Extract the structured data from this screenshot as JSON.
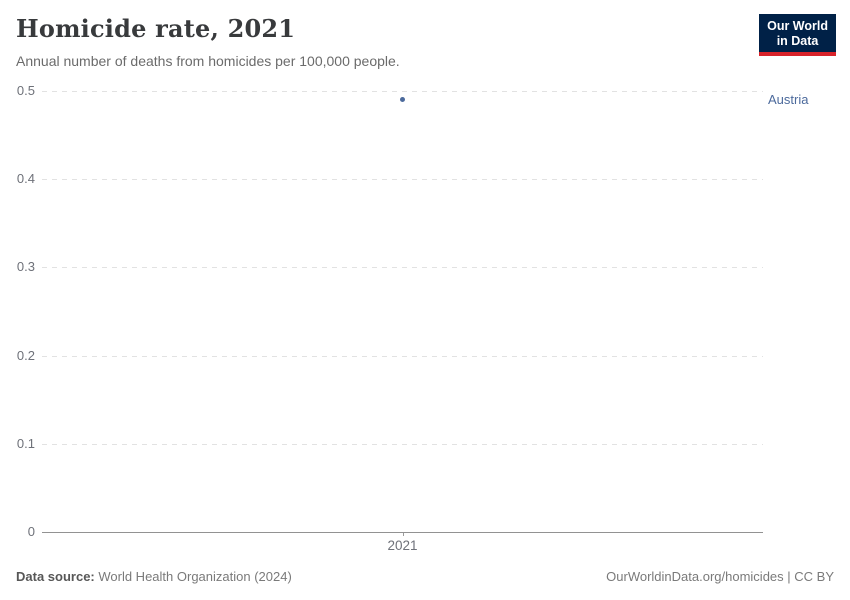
{
  "header": {
    "title": "Homicide rate, 2021",
    "subtitle": "Annual number of deaths from homicides per 100,000 people.",
    "logo": {
      "line1": "Our World",
      "line2": "in Data",
      "bg_color": "#002147",
      "accent_color": "#d8232a"
    }
  },
  "chart_data": {
    "type": "scatter",
    "title": "Homicide rate, 2021",
    "xlabel": "",
    "ylabel": "",
    "x": [
      2021
    ],
    "x_ticks": [
      "2021"
    ],
    "y_ticks": [
      "0.5",
      "0.4",
      "0.3",
      "0.2",
      "0.1",
      "0"
    ],
    "ylim": [
      0,
      0.5
    ],
    "grid": "horizontal-dashed",
    "series": [
      {
        "name": "Austria",
        "x": [
          2021
        ],
        "values": [
          0.49
        ],
        "color": "#4c6a9c"
      }
    ]
  },
  "footer": {
    "source_label": "Data source:",
    "source_value": " World Health Organization (2024)",
    "credit": "OurWorldinData.org/homicides | CC BY"
  }
}
